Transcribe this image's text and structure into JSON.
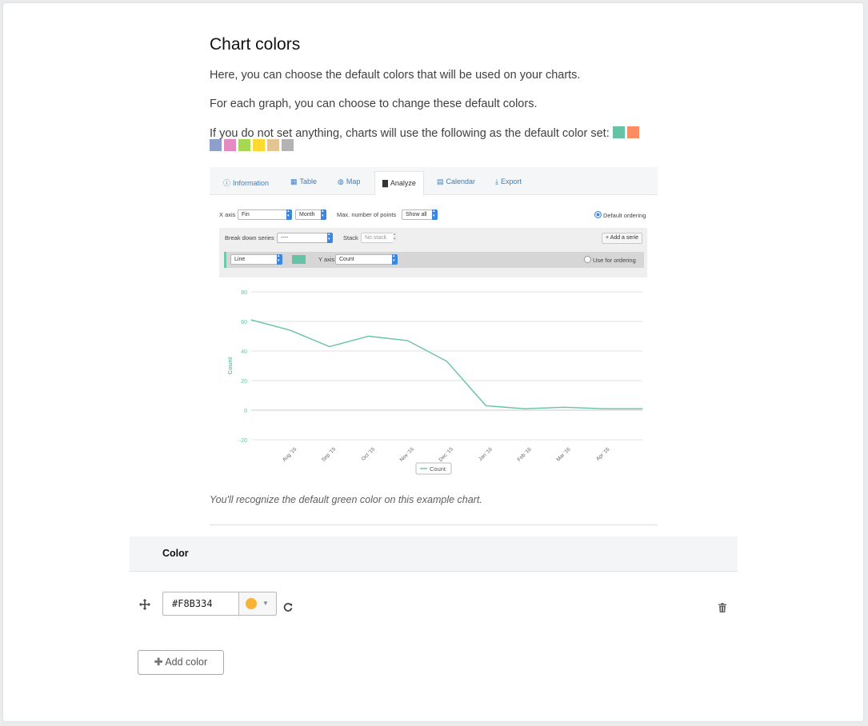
{
  "section": {
    "title": "Chart colors",
    "para1": "Here, you can choose the default colors that will be used on your charts.",
    "para2": "For each graph, you can choose to change these default colors.",
    "para3": "If you do not set anything, charts will use the following as the default color set:",
    "default_colors": [
      "#66c2a5",
      "#fc8d62",
      "#8da0cb",
      "#e78ac3",
      "#a6d854",
      "#ffd92f",
      "#e5c494",
      "#b3b3b3"
    ],
    "caption": "You'll recognize the default green color on this example chart."
  },
  "example": {
    "tabs": [
      {
        "icon": "info-icon",
        "glyph": "ⓘ",
        "label": "Information"
      },
      {
        "icon": "table-icon",
        "glyph": "▦",
        "label": "Table"
      },
      {
        "icon": "globe-icon",
        "glyph": "◍",
        "label": "Map"
      },
      {
        "icon": "bar-chart-icon",
        "glyph": "▇",
        "label": "Analyze"
      },
      {
        "icon": "calendar-icon",
        "glyph": "▤",
        "label": "Calendar"
      },
      {
        "icon": "download-icon",
        "glyph": "⤓",
        "label": "Export"
      }
    ],
    "x_axis_label": "X axis",
    "x_axis_field": "Fin",
    "x_axis_grouping": "Month",
    "max_points_label": "Max. number of points",
    "max_points_value": "Show all",
    "default_ordering_label": "Default ordering",
    "breakdown_label": "Break down series",
    "breakdown_value": "----",
    "stack_label": "Stack",
    "stack_value": "No stack",
    "add_serie_label": "+ Add a serie",
    "serie_type": "Line",
    "y_axis_label": "Y axis",
    "y_axis_value": "Count",
    "use_for_ordering_label": "Use for ordering"
  },
  "chart_data": {
    "type": "line",
    "categories": [
      "Aug '15",
      "Sep '15",
      "Oct '15",
      "Nov '15",
      "Dec '15",
      "Jan '16",
      "Feb '16",
      "Mar '16",
      "Apr '16"
    ],
    "x": [
      "Jul '15",
      "Aug '15",
      "Sep '15",
      "Oct '15",
      "Nov '15",
      "Dec '15",
      "Jan '16",
      "Feb '16",
      "Mar '16",
      "Apr '16",
      "May '16"
    ],
    "series": [
      {
        "name": "Count",
        "color": "#66c2a5",
        "values": [
          61,
          54,
          43,
          50,
          47,
          33,
          3,
          1,
          2,
          1,
          1
        ]
      }
    ],
    "title": "",
    "xlabel": "",
    "ylabel": "Count",
    "yticks": [
      -20,
      0,
      20,
      40,
      60,
      80
    ],
    "ylim": [
      -20,
      80
    ],
    "grid": true,
    "legend": "bottom-center"
  },
  "table": {
    "header_color": "Color",
    "rows": [
      {
        "hex": "#F8B334",
        "swatch": "#f8b334"
      }
    ],
    "add_color_label": "Add color"
  }
}
